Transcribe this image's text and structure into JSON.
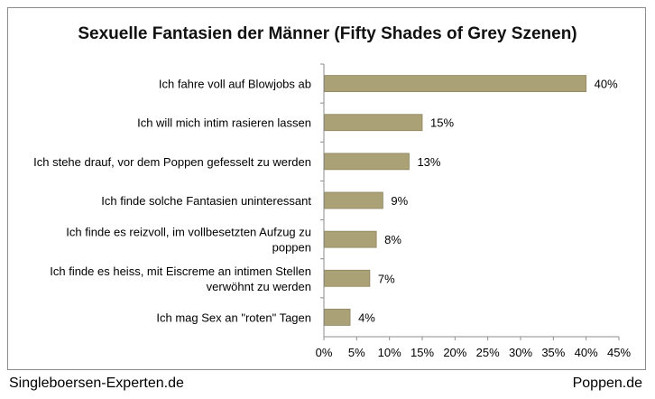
{
  "chart_data": {
    "type": "bar",
    "orientation": "horizontal",
    "title": "Sexuelle Fantasien der Männer (Fifty Shades of Grey Szenen)",
    "categories": [
      "Ich fahre voll auf Blowjobs ab",
      "Ich will mich intim rasieren lassen",
      "Ich stehe drauf, vor dem Poppen gefesselt zu werden",
      "Ich finde solche Fantasien uninteressant",
      "Ich finde es reizvoll, im vollbesetzten Aufzug zu poppen",
      "Ich finde es heiss, mit Eiscreme an intimen Stellen verwöhnt zu werden",
      "Ich mag Sex an \"roten\" Tagen"
    ],
    "category_lines": [
      [
        "Ich fahre voll auf Blowjobs ab"
      ],
      [
        "Ich will mich intim rasieren lassen"
      ],
      [
        "Ich stehe drauf, vor dem Poppen gefesselt zu werden"
      ],
      [
        "Ich finde solche Fantasien uninteressant"
      ],
      [
        "Ich finde es reizvoll, im vollbesetzten Aufzug zu",
        "poppen"
      ],
      [
        "Ich finde es heiss, mit Eiscreme an intimen Stellen",
        "verwöhnt zu werden"
      ],
      [
        "Ich mag Sex an \"roten\" Tagen"
      ]
    ],
    "values": [
      40,
      15,
      13,
      9,
      8,
      7,
      4
    ],
    "data_labels": [
      "40%",
      "15%",
      "13%",
      "9%",
      "8%",
      "7%",
      "4%"
    ],
    "xlim": [
      0,
      45
    ],
    "x_ticks": [
      0,
      5,
      10,
      15,
      20,
      25,
      30,
      35,
      40,
      45
    ],
    "x_tick_labels": [
      "0%",
      "5%",
      "10%",
      "15%",
      "20%",
      "25%",
      "30%",
      "35%",
      "40%",
      "45%"
    ],
    "xlabel": "",
    "ylabel": "",
    "grid": false,
    "legend": "none",
    "bar_color": "#aba177",
    "bar_edge_color": "#8e8560"
  },
  "footer": {
    "left": "Singleboersen-Experten.de",
    "right": "Poppen.de"
  }
}
